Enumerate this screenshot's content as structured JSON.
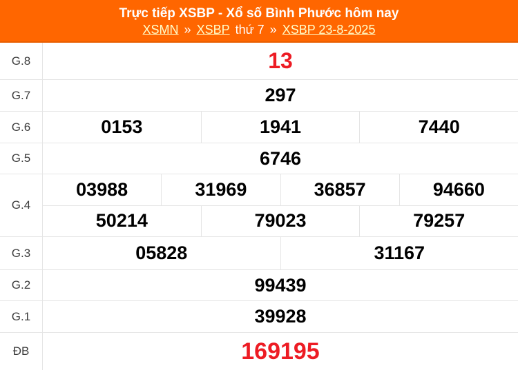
{
  "colors": {
    "header-bg": "#ff6600",
    "header-border": "#e85e00",
    "header-text": "#ffffff",
    "link": "#ffffcc",
    "accent-red": "#ed1c24",
    "number": "#000000",
    "label-text": "#3d3d3d",
    "border": "#e5e5e5",
    "row-bg": "#ffffff"
  },
  "header": {
    "title": "Trực tiếp XSBP - Xổ số Bình Phước hôm nay",
    "breadcrumb": [
      {
        "text": "XSMN",
        "link": true
      },
      {
        "text": "»",
        "link": false
      },
      {
        "text": "XSBP",
        "link": true
      },
      {
        "text": "thứ 7",
        "link": false
      },
      {
        "text": "»",
        "link": false
      },
      {
        "text": "XSBP 23-8-2025",
        "link": true
      }
    ]
  },
  "table": {
    "rows": [
      {
        "id": "g8",
        "label": "G.8",
        "highlight": true,
        "groups": [
          [
            "13"
          ]
        ]
      },
      {
        "id": "g7",
        "label": "G.7",
        "highlight": false,
        "groups": [
          [
            "297"
          ]
        ]
      },
      {
        "id": "g6",
        "label": "G.6",
        "highlight": false,
        "groups": [
          [
            "0153",
            "1941",
            "7440"
          ]
        ]
      },
      {
        "id": "g5",
        "label": "G.5",
        "highlight": false,
        "groups": [
          [
            "6746"
          ]
        ]
      },
      {
        "id": "g4",
        "label": "G.4",
        "highlight": false,
        "groups": [
          [
            "03988",
            "31969",
            "36857",
            "94660"
          ],
          [
            "50214",
            "79023",
            "79257"
          ]
        ]
      },
      {
        "id": "g3",
        "label": "G.3",
        "highlight": false,
        "groups": [
          [
            "05828",
            "31167"
          ]
        ]
      },
      {
        "id": "g2",
        "label": "G.2",
        "highlight": false,
        "groups": [
          [
            "99439"
          ]
        ]
      },
      {
        "id": "g1",
        "label": "G.1",
        "highlight": false,
        "groups": [
          [
            "39928"
          ]
        ]
      },
      {
        "id": "db",
        "label": "ĐB",
        "highlight": true,
        "groups": [
          [
            "169195"
          ]
        ]
      }
    ]
  }
}
